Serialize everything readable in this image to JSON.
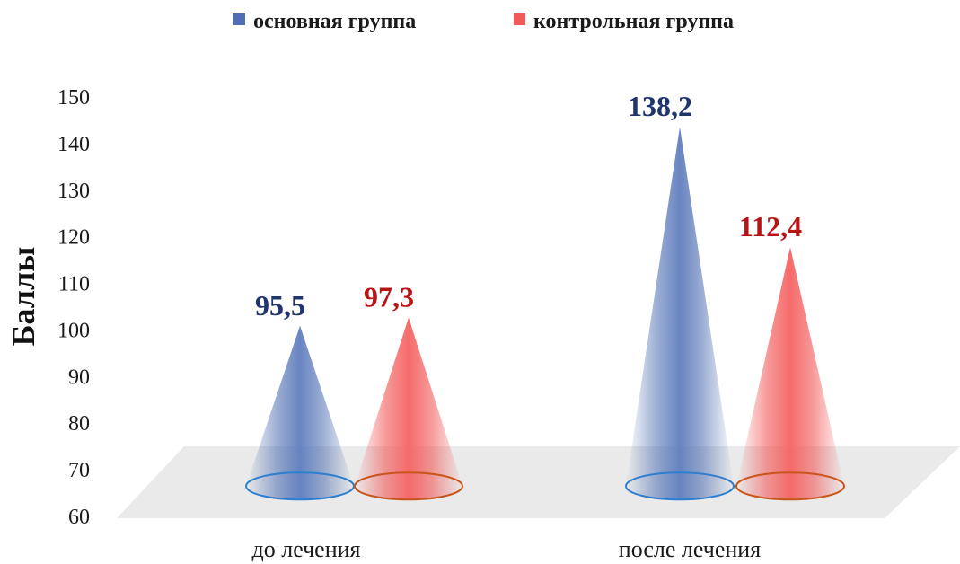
{
  "chart_data": {
    "type": "bar",
    "mark_shape": "cone",
    "categories": [
      "до лечения",
      "после лечения"
    ],
    "series": [
      {
        "name": "основная группа",
        "values": [
          95.5,
          138.2
        ],
        "labels": [
          "95,5",
          "138,2"
        ],
        "color": "#4f6fb2",
        "label_color": "#1f3570",
        "edge_color": "#2f7fd0"
      },
      {
        "name": "контрольная группа",
        "values": [
          97.3,
          112.4
        ],
        "labels": [
          "97,3",
          "112,4"
        ],
        "color": "#f25a5a",
        "label_color": "#b81414",
        "edge_color": "#c8551a"
      }
    ],
    "ylabel": "Баллы",
    "ylim": [
      60,
      150
    ],
    "yticks": [
      "60",
      "70",
      "80",
      "90",
      "100",
      "110",
      "120",
      "130",
      "140",
      "150"
    ],
    "legend_position": "top",
    "grid": false
  }
}
